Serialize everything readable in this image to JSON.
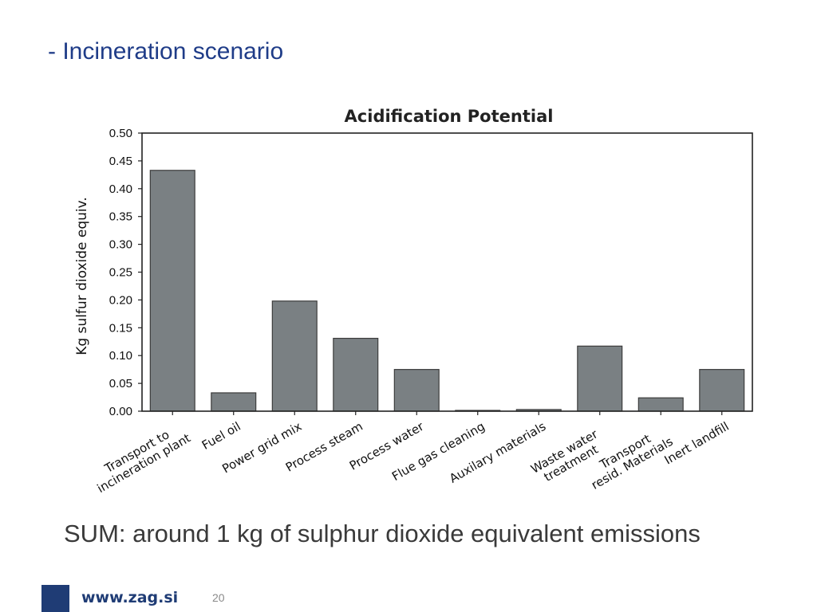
{
  "slide": {
    "title": "- Incineration scenario",
    "note": "SUM: around 1 kg of sulphur dioxide equivalent emissions",
    "footer_url": "www.zag.si",
    "page_number": "20"
  },
  "colors": {
    "title": "#1f3c88",
    "bar_fill": "#7a8083",
    "bar_stroke": "#3c3c3c",
    "footer_brand": "#1f3c75"
  },
  "chart_data": {
    "type": "bar",
    "title": "Acidification Potential",
    "xlabel": "",
    "ylabel": "Kg sulfur dioxide equiv.",
    "ylim": [
      0,
      0.5
    ],
    "yticks": [
      "0.00",
      "0.05",
      "0.10",
      "0.15",
      "0.20",
      "0.25",
      "0.30",
      "0.35",
      "0.40",
      "0.45",
      "0.50"
    ],
    "grid": false,
    "categories": [
      [
        "Transport to",
        "incineration plant"
      ],
      [
        "Fuel oil"
      ],
      [
        "Power grid mix"
      ],
      [
        "Process steam"
      ],
      [
        "Process water"
      ],
      [
        "Flue gas cleaning"
      ],
      [
        "Auxilary materials"
      ],
      [
        "Waste water",
        "treatment"
      ],
      [
        "Transport",
        "resid. Materials"
      ],
      [
        "Inert landfill"
      ]
    ],
    "values": [
      0.433,
      0.033,
      0.198,
      0.131,
      0.075,
      0.001,
      0.003,
      0.117,
      0.024,
      0.075
    ]
  }
}
